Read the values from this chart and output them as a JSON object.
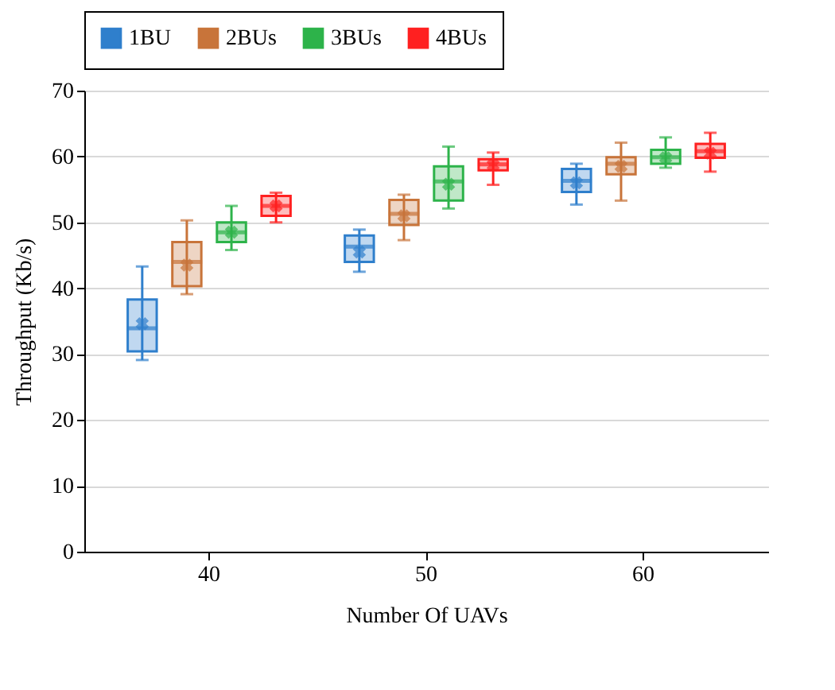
{
  "chart_data": {
    "type": "box",
    "xlabel": "Number Of UAVs",
    "ylabel": "Throughput (Kb/s)",
    "categories": [
      "40",
      "50",
      "60"
    ],
    "ylim": [
      0,
      70
    ],
    "yticks": [
      0,
      10,
      20,
      30,
      40,
      50,
      60,
      70
    ],
    "grid": "y",
    "legend": "top",
    "marker": "cross",
    "series": [
      {
        "name": "1BU",
        "color": "#2f7fcc",
        "boxes": [
          {
            "low": 29.1,
            "q1": 30.4,
            "median": 33.9,
            "q3": 38.3,
            "high": 43.3,
            "mean": 34.6
          },
          {
            "low": 42.5,
            "q1": 44.0,
            "median": 46.3,
            "q3": 48.0,
            "high": 48.9,
            "mean": 45.5
          },
          {
            "low": 52.7,
            "q1": 54.6,
            "median": 56.3,
            "q3": 58.1,
            "high": 58.9,
            "mean": 56.0
          }
        ]
      },
      {
        "name": "2BUs",
        "color": "#c8743a",
        "boxes": [
          {
            "low": 39.1,
            "q1": 40.3,
            "median": 44.0,
            "q3": 47.0,
            "high": 50.3,
            "mean": 43.5
          },
          {
            "low": 47.3,
            "q1": 49.6,
            "median": 51.3,
            "q3": 53.4,
            "high": 54.2,
            "mean": 51.0
          },
          {
            "low": 53.3,
            "q1": 57.3,
            "median": 58.9,
            "q3": 59.9,
            "high": 62.1,
            "mean": 58.5
          }
        ]
      },
      {
        "name": "3BUs",
        "color": "#2db34a",
        "boxes": [
          {
            "low": 45.8,
            "q1": 47.0,
            "median": 48.5,
            "q3": 50.0,
            "high": 52.5,
            "mean": 48.5
          },
          {
            "low": 52.1,
            "q1": 53.3,
            "median": 56.2,
            "q3": 58.5,
            "high": 61.5,
            "mean": 55.8
          },
          {
            "low": 58.3,
            "q1": 58.9,
            "median": 59.9,
            "q3": 61.0,
            "high": 62.9,
            "mean": 59.8
          }
        ]
      },
      {
        "name": "4BUs",
        "color": "#ff2020",
        "boxes": [
          {
            "low": 50.0,
            "q1": 51.0,
            "median": 52.5,
            "q3": 54.0,
            "high": 54.5,
            "mean": 52.5
          },
          {
            "low": 55.7,
            "q1": 57.9,
            "median": 58.8,
            "q3": 59.6,
            "high": 60.6,
            "mean": 58.7
          },
          {
            "low": 57.7,
            "q1": 59.8,
            "median": 60.8,
            "q3": 61.9,
            "high": 63.6,
            "mean": 60.5
          }
        ]
      }
    ]
  }
}
